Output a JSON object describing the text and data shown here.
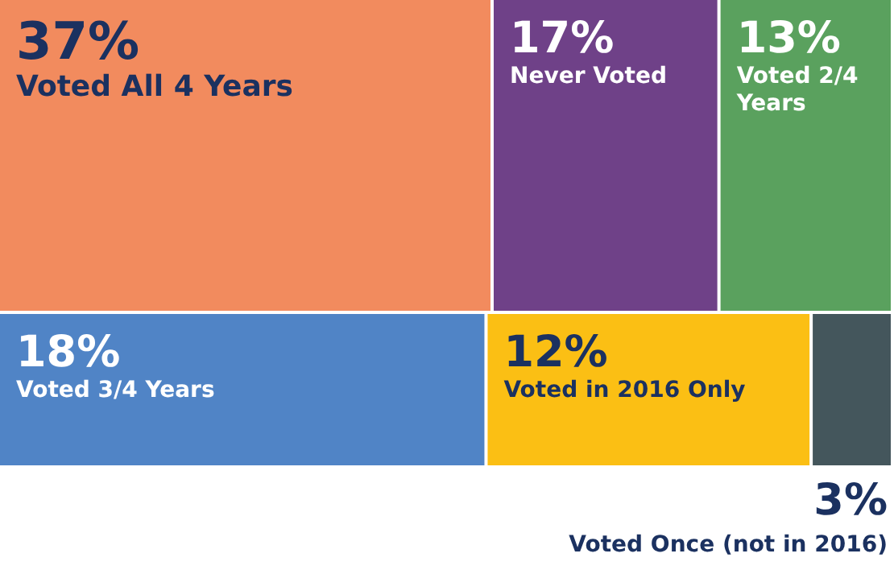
{
  "chart_data": {
    "type": "other",
    "categories": [
      "Voted All 4 Years",
      "Never Voted",
      "Voted 2/4 Years",
      "Voted 3/4 Years",
      "Voted in 2016 Only",
      "Voted Once (not in 2016)"
    ],
    "values": [
      37,
      17,
      13,
      18,
      12,
      3
    ],
    "value_labels": [
      "37%",
      "17%",
      "13%",
      "18%",
      "12%",
      "3%"
    ],
    "colors": [
      "#f28b5e",
      "#6f4188",
      "#5aa15e",
      "#5084c6",
      "#fbbf14",
      "#44565c"
    ]
  }
}
